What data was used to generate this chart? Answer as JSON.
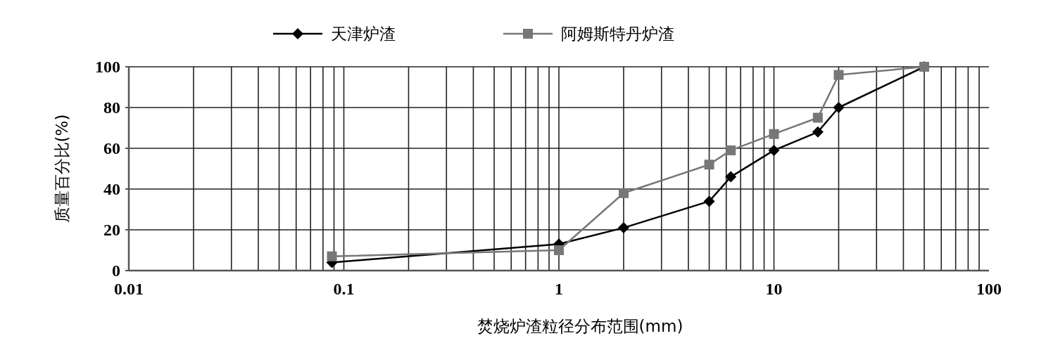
{
  "chart_data": {
    "type": "line",
    "xlabel": "焚烧炉渣粒径分布范围(mm)",
    "ylabel": "质量百分比(%)",
    "log": "x",
    "xlim": [
      0.01,
      100
    ],
    "xticks": [
      0.01,
      0.1,
      1,
      10,
      100
    ],
    "ylim": [
      0,
      100
    ],
    "yticks": [
      0,
      20,
      40,
      60,
      80,
      100
    ],
    "grid": true,
    "legend": "top",
    "series": [
      {
        "name": "天津炉渣",
        "color": "#000000",
        "marker": "diamond",
        "x": [
          0.088,
          1,
          2,
          5,
          6.3,
          10,
          16,
          20,
          50
        ],
        "values": [
          4,
          13,
          21,
          34,
          46,
          59,
          68,
          80,
          100
        ]
      },
      {
        "name": "阿姆斯特丹炉渣",
        "color": "#777777",
        "marker": "square",
        "x": [
          0.088,
          1,
          2,
          5,
          6.3,
          10,
          16,
          20,
          50
        ],
        "values": [
          7,
          10,
          38,
          52,
          59,
          67,
          75,
          96,
          100
        ]
      }
    ]
  }
}
